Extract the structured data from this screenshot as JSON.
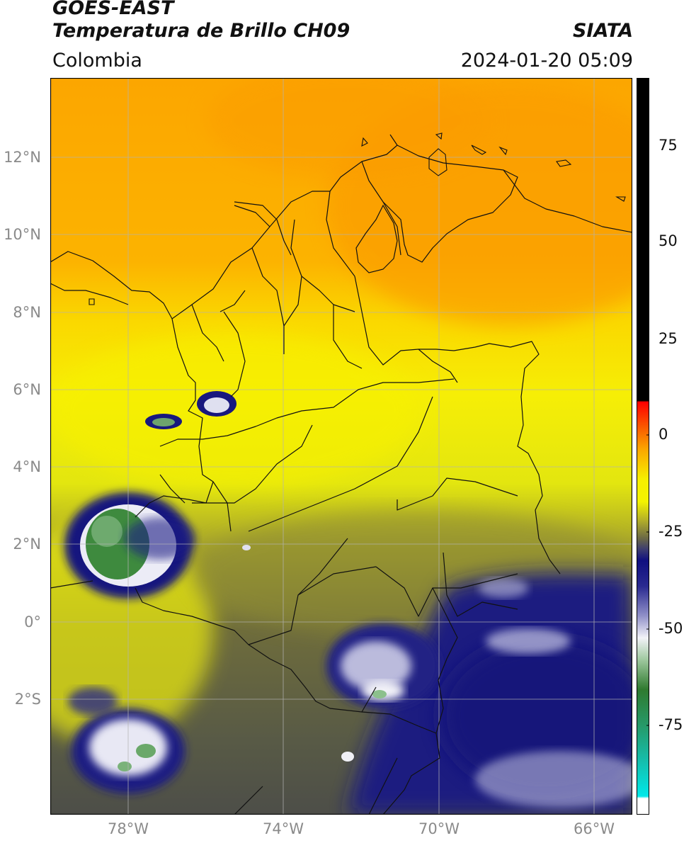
{
  "header": {
    "satellite": "GOES-EAST",
    "product": "Temperatura de Brillo CH09",
    "organization": "SIATA",
    "region": "Colombia",
    "datetime": "2024-01-20 05:09"
  },
  "map": {
    "lat_ticks": [
      "12°N",
      "10°N",
      "8°N",
      "6°N",
      "4°N",
      "2°N",
      "0°",
      "2°S"
    ],
    "lon_ticks": [
      "78°W",
      "74°W",
      "70°W",
      "66°W"
    ],
    "graticule": true,
    "extent": {
      "west": -80,
      "east": -65,
      "south": -5,
      "north": 14
    }
  },
  "colorbar": {
    "ticks": [
      "75",
      "50",
      "25",
      "0",
      "-25",
      "-50",
      "-75"
    ],
    "colors": {
      "hot": "#000000",
      "red": "#e8201a",
      "orange": "#fb9c0a",
      "yellow": "#f9f202",
      "olive": "#7f7d32",
      "navy": "#14147e",
      "white": "#f4f4f8",
      "green": "#3c8a3c",
      "teal": "#1dbfa0",
      "cyan": "#00e6e6"
    }
  }
}
